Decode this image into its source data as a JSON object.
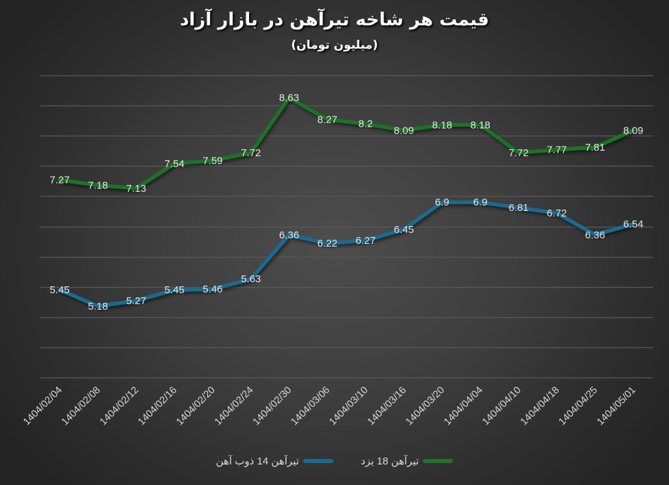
{
  "title": "قیمت هر شاخه تیرآهن در بازار آزاد",
  "subtitle": "(میلیون تومان)",
  "legend": [
    {
      "label": "تیرآهن 18 یزد",
      "color": "#1e7326"
    },
    {
      "label": "تیرآهن 14 ذوب آهن",
      "color": "#1a6a8f"
    }
  ],
  "chart_data": {
    "type": "line",
    "title": "قیمت هر شاخه تیرآهن در بازار آزاد",
    "subtitle": "(میلیون تومان)",
    "xlabel": "",
    "ylabel": "",
    "ylim": [
      4,
      9
    ],
    "grid": true,
    "y_axis_visible": false,
    "legend_position": "bottom",
    "categories": [
      "1404/02/04",
      "1404/02/08",
      "1404/02/12",
      "1404/02/16",
      "1404/02/20",
      "1404/02/24",
      "1404/02/30",
      "1404/03/06",
      "1404/03/10",
      "1404/03/16",
      "1404/03/20",
      "1404/04/04",
      "1404/04/10",
      "1404/04/18",
      "1404/04/25",
      "1404/05/01"
    ],
    "series": [
      {
        "name": "تیرآهن 18 یزد",
        "color": "#1e7326",
        "values": [
          7.27,
          7.18,
          7.13,
          7.54,
          7.59,
          7.72,
          8.63,
          8.27,
          8.2,
          8.09,
          8.18,
          8.18,
          7.72,
          7.77,
          7.81,
          8.09
        ]
      },
      {
        "name": "تیرآهن 14 ذوب آهن",
        "color": "#1a6a8f",
        "values": [
          5.45,
          5.18,
          5.27,
          5.45,
          5.46,
          5.63,
          6.36,
          6.22,
          6.27,
          6.45,
          6.9,
          6.9,
          6.81,
          6.72,
          6.36,
          6.54
        ]
      }
    ]
  }
}
